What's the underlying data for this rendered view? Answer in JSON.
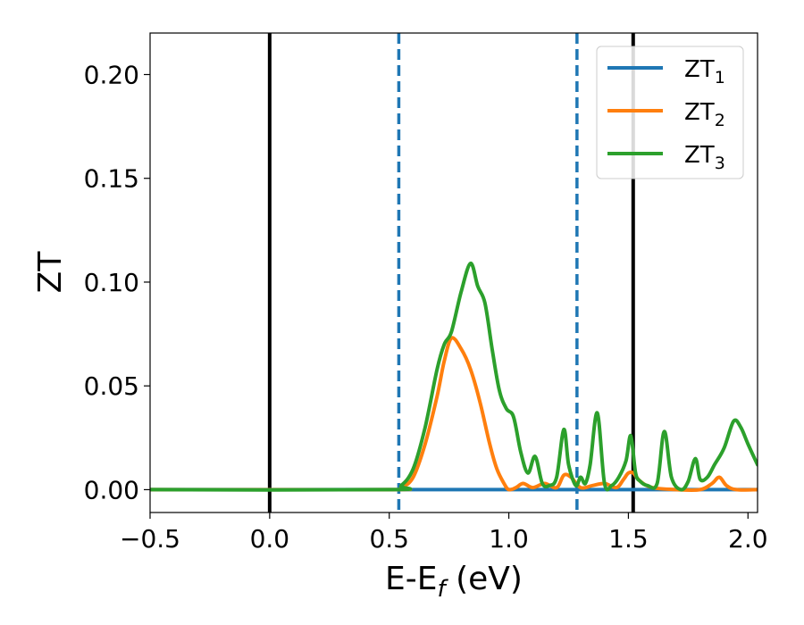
{
  "chart_data": {
    "type": "line",
    "xlabel_main": "E-E",
    "xlabel_sub": "f",
    "xlabel_unit": " (eV)",
    "ylabel": "ZT",
    "xlim": [
      -0.5,
      2.04
    ],
    "ylim": [
      -0.011,
      0.22
    ],
    "xticks": [
      -0.5,
      0.0,
      0.5,
      1.0,
      1.5,
      2.0
    ],
    "xtick_labels": [
      "−0.5",
      "0.0",
      "0.5",
      "1.0",
      "1.5",
      "2.0"
    ],
    "yticks": [
      0.0,
      0.05,
      0.1,
      0.15,
      0.2
    ],
    "ytick_labels": [
      "0.00",
      "0.05",
      "0.10",
      "0.15",
      "0.20"
    ],
    "grid": false,
    "legend_placement": "top-right",
    "vlines": [
      {
        "x": 0.0,
        "style": "solid",
        "color": "#000000"
      },
      {
        "x": 1.52,
        "style": "solid",
        "color": "#000000"
      },
      {
        "x": 0.54,
        "style": "dashed",
        "color": "#1f77b4"
      },
      {
        "x": 1.285,
        "style": "dashed",
        "color": "#1f77b4"
      }
    ],
    "series": [
      {
        "name_main": "ZT",
        "name_sub": "1",
        "color": "#1f77b4",
        "x": [
          -0.5,
          2.04
        ],
        "y": [
          0.0,
          0.0
        ]
      },
      {
        "name_main": "ZT",
        "name_sub": "2",
        "color": "#ff7f0e",
        "x": [
          -0.5,
          0.5,
          0.55,
          0.6,
          0.65,
          0.7,
          0.73,
          0.76,
          0.8,
          0.84,
          0.88,
          0.92,
          0.95,
          0.98,
          1.0,
          1.03,
          1.06,
          1.1,
          1.15,
          1.2,
          1.23,
          1.26,
          1.3,
          1.35,
          1.4,
          1.45,
          1.48,
          1.5,
          1.52,
          1.55,
          1.6,
          1.7,
          1.8,
          1.85,
          1.88,
          1.91,
          1.95,
          2.04
        ],
        "y": [
          0.0,
          0.0,
          0.001,
          0.006,
          0.022,
          0.045,
          0.062,
          0.073,
          0.068,
          0.058,
          0.042,
          0.022,
          0.01,
          0.003,
          0.0,
          0.001,
          0.003,
          0.001,
          0.003,
          0.001,
          0.007,
          0.006,
          0.001,
          0.002,
          0.003,
          0.001,
          0.005,
          0.008,
          0.008,
          0.004,
          0.001,
          0.0,
          0.0,
          0.003,
          0.006,
          0.002,
          0.0,
          0.0
        ]
      },
      {
        "name_main": "ZT",
        "name_sub": "3",
        "color": "#2ca02c",
        "x": [
          -0.5,
          0.5,
          0.55,
          0.6,
          0.65,
          0.7,
          0.73,
          0.76,
          0.8,
          0.84,
          0.87,
          0.9,
          0.93,
          0.96,
          0.99,
          1.02,
          1.05,
          1.08,
          1.11,
          1.14,
          1.17,
          1.2,
          1.23,
          1.25,
          1.28,
          1.3,
          1.32,
          1.34,
          1.37,
          1.4,
          1.43,
          1.46,
          1.49,
          1.51,
          1.53,
          1.55,
          1.58,
          1.62,
          1.65,
          1.68,
          1.72,
          1.75,
          1.78,
          1.8,
          1.83,
          1.86,
          1.9,
          1.94,
          1.97,
          2.0,
          2.04
        ],
        "y": [
          0.0,
          0.0,
          0.002,
          0.01,
          0.03,
          0.058,
          0.07,
          0.076,
          0.095,
          0.109,
          0.098,
          0.09,
          0.068,
          0.048,
          0.039,
          0.035,
          0.018,
          0.008,
          0.016,
          0.003,
          0.002,
          0.006,
          0.029,
          0.012,
          0.002,
          0.006,
          0.003,
          0.012,
          0.037,
          0.003,
          0.002,
          0.006,
          0.014,
          0.026,
          0.008,
          0.004,
          0.002,
          0.003,
          0.028,
          0.006,
          0.0,
          0.004,
          0.015,
          0.005,
          0.006,
          0.012,
          0.02,
          0.033,
          0.03,
          0.022,
          0.012
        ]
      }
    ]
  }
}
